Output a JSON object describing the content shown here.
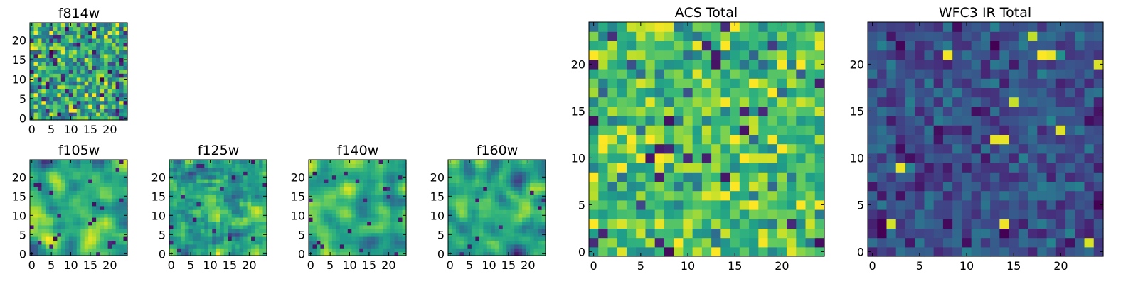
{
  "chart_data": [
    {
      "id": "p-f814w",
      "type": "heatmap",
      "title": "f814w",
      "xticks": [
        "0",
        "5",
        "10",
        "15",
        "20"
      ],
      "yticks": [
        "0",
        "5",
        "10",
        "15",
        "20"
      ],
      "xlim": [
        -0.5,
        24.5
      ],
      "ylim": [
        -0.5,
        24.5
      ],
      "grid": false,
      "colormap": "viridis",
      "seed": 11,
      "mean": 0.58,
      "spread": 0.22,
      "smooth": 0
    },
    {
      "id": "p-f105w",
      "type": "heatmap",
      "title": "f105w",
      "xticks": [
        "0",
        "5",
        "10",
        "15",
        "20"
      ],
      "yticks": [
        "0",
        "5",
        "10",
        "15",
        "20"
      ],
      "xlim": [
        -0.5,
        24.5
      ],
      "ylim": [
        -0.5,
        24.5
      ],
      "grid": false,
      "colormap": "viridis",
      "seed": 23,
      "mean": 0.62,
      "spread": 0.2,
      "smooth": 2
    },
    {
      "id": "p-f125w",
      "type": "heatmap",
      "title": "f125w",
      "xticks": [
        "0",
        "5",
        "10",
        "15",
        "20"
      ],
      "yticks": [
        "0",
        "5",
        "10",
        "15",
        "20"
      ],
      "xlim": [
        -0.5,
        24.5
      ],
      "ylim": [
        -0.5,
        24.5
      ],
      "grid": false,
      "colormap": "viridis",
      "seed": 37,
      "mean": 0.6,
      "spread": 0.24,
      "smooth": 1
    },
    {
      "id": "p-f140w",
      "type": "heatmap",
      "title": "f140w",
      "xticks": [
        "0",
        "5",
        "10",
        "15",
        "20"
      ],
      "yticks": [
        "0",
        "5",
        "10",
        "15",
        "20"
      ],
      "xlim": [
        -0.5,
        24.5
      ],
      "ylim": [
        -0.5,
        24.5
      ],
      "grid": false,
      "colormap": "viridis",
      "seed": 41,
      "mean": 0.63,
      "spread": 0.2,
      "smooth": 2
    },
    {
      "id": "p-f160w",
      "type": "heatmap",
      "title": "f160w",
      "xticks": [
        "0",
        "5",
        "10",
        "15",
        "20"
      ],
      "yticks": [
        "0",
        "5",
        "10",
        "15",
        "20"
      ],
      "xlim": [
        -0.5,
        24.5
      ],
      "ylim": [
        -0.5,
        24.5
      ],
      "grid": false,
      "colormap": "viridis",
      "seed": 53,
      "mean": 0.6,
      "spread": 0.22,
      "smooth": 2
    },
    {
      "id": "p-acs",
      "type": "heatmap",
      "title": "ACS Total",
      "xticks": [
        "0",
        "5",
        "10",
        "15",
        "20"
      ],
      "yticks": [
        "0",
        "5",
        "10",
        "15",
        "20"
      ],
      "xlim": [
        -0.5,
        24.5
      ],
      "ylim": [
        -0.5,
        24.5
      ],
      "grid": false,
      "colormap": "viridis",
      "seed": 67,
      "mean": 0.68,
      "spread": 0.16,
      "smooth": 0
    },
    {
      "id": "p-wfc3",
      "type": "heatmap",
      "title": "WFC3 IR Total",
      "xticks": [
        "0",
        "5",
        "10",
        "15",
        "20"
      ],
      "yticks": [
        "0",
        "5",
        "10",
        "15",
        "20"
      ],
      "xlim": [
        -0.5,
        24.5
      ],
      "ylim": [
        -0.5,
        24.5
      ],
      "grid": false,
      "colormap": "viridis",
      "seed": 79,
      "mean": 0.24,
      "spread": 0.1,
      "smooth": 0
    }
  ]
}
